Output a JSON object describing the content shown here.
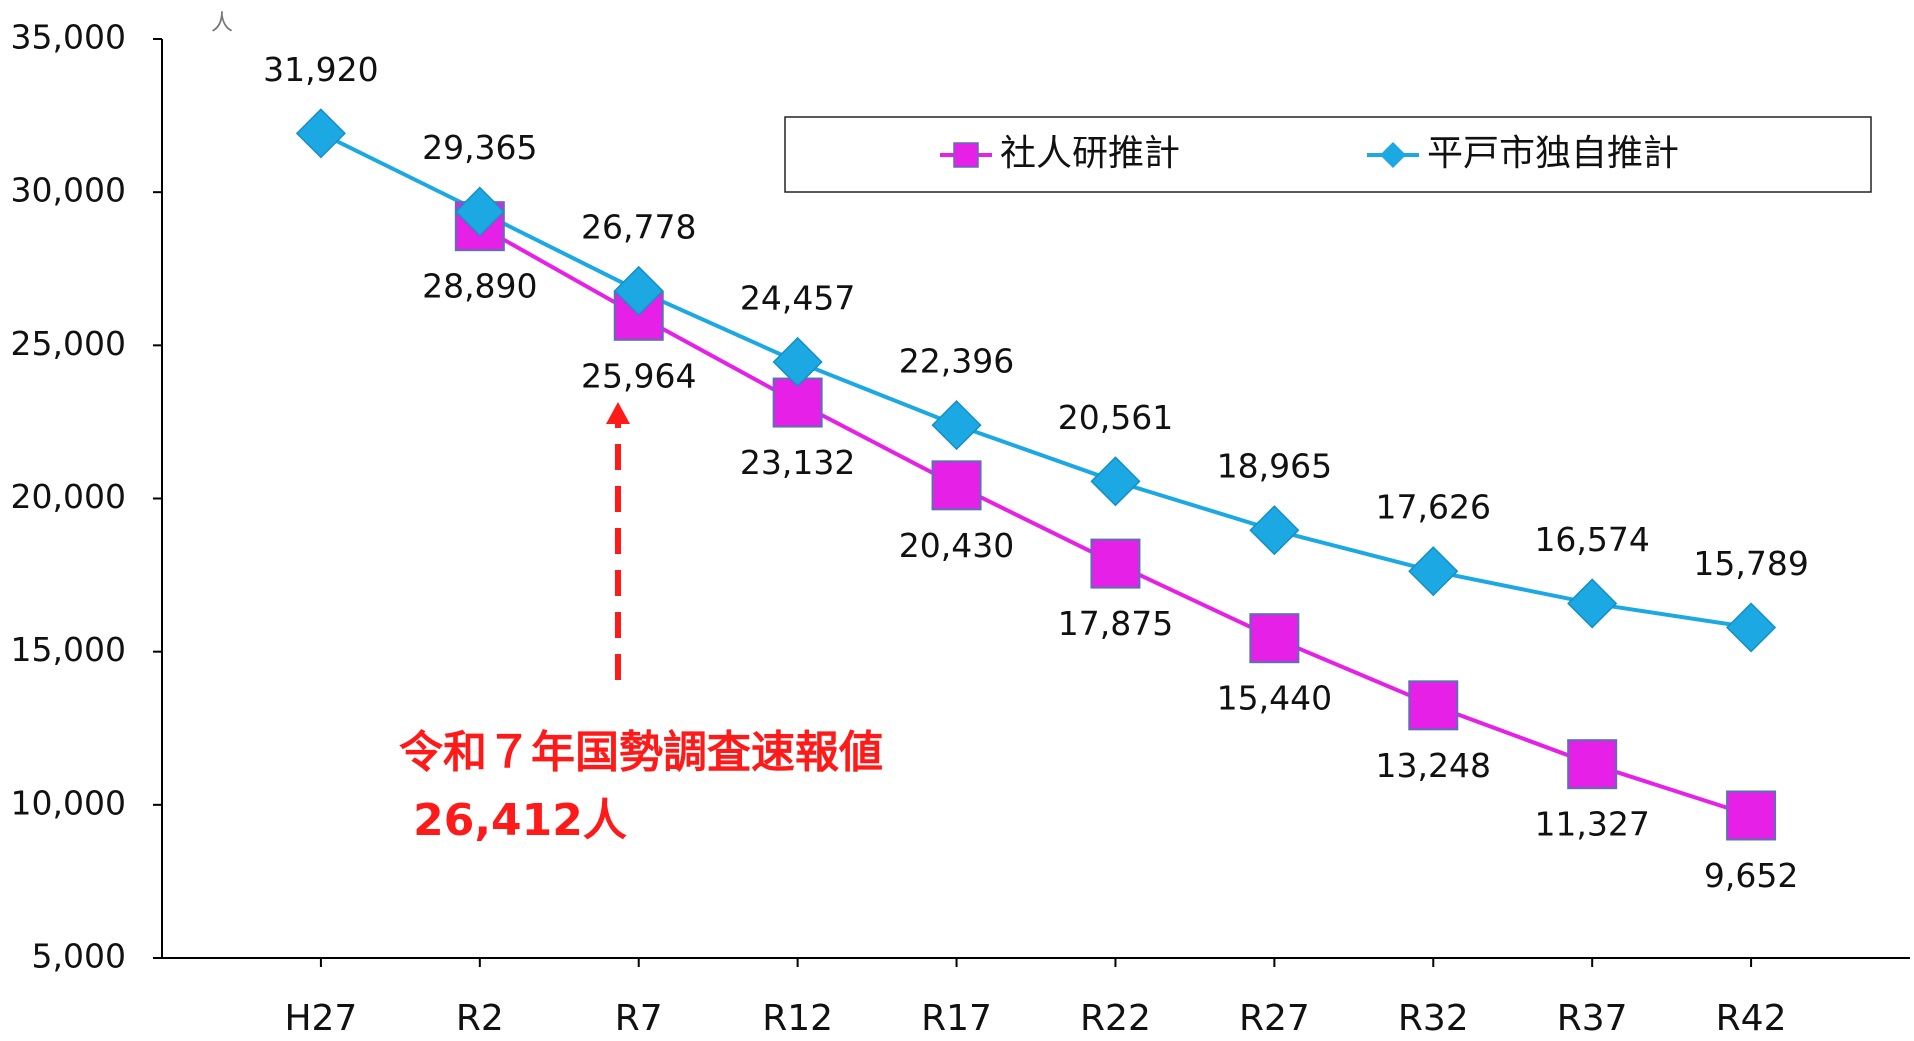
{
  "chart_data": {
    "type": "line",
    "y_unit": "人",
    "categories": [
      "H27",
      "R2",
      "R7",
      "R12",
      "R17",
      "R22",
      "R27",
      "R32",
      "R37",
      "R42"
    ],
    "series": [
      {
        "name": "社人研推計",
        "color": "#e620e6",
        "marker": "square",
        "values": [
          null,
          28890,
          25964,
          23132,
          20430,
          17875,
          15440,
          13248,
          11327,
          9652
        ],
        "value_labels": [
          null,
          "28,890",
          "25,964",
          "23,132",
          "20,430",
          "17,875",
          "15,440",
          "13,248",
          "11,327",
          "9,652"
        ]
      },
      {
        "name": "平戸市独自推計",
        "color": "#1ca8e3",
        "marker": "diamond",
        "values": [
          31920,
          29365,
          26778,
          24457,
          22396,
          20561,
          18965,
          17626,
          16574,
          15789
        ],
        "value_labels": [
          "31,920",
          "29,365",
          "26,778",
          "24,457",
          "22,396",
          "20,561",
          "18,965",
          "17,626",
          "16,574",
          "15,789"
        ]
      }
    ],
    "ylim": [
      5000,
      35000
    ],
    "yticks": [
      {
        "value": 5000,
        "label": "5,000"
      },
      {
        "value": 10000,
        "label": "10,000"
      },
      {
        "value": 15000,
        "label": "15,000"
      },
      {
        "value": 20000,
        "label": "20,000"
      },
      {
        "value": 25000,
        "label": "25,000"
      },
      {
        "value": 30000,
        "label": "30,000"
      },
      {
        "value": 35000,
        "label": "35,000"
      }
    ],
    "legend": "top-right",
    "annotations": [
      "令和７年国勢調査速報値",
      "26,412人"
    ]
  }
}
